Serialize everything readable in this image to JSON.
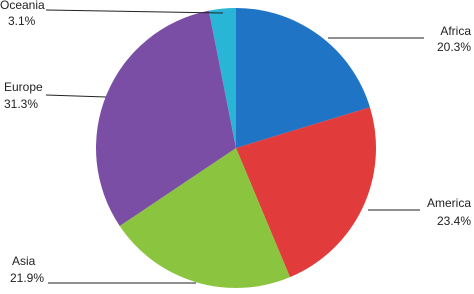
{
  "chart_data": {
    "type": "pie",
    "categories": [
      "Africa",
      "America",
      "Asia",
      "Europe",
      "Oceania"
    ],
    "values": [
      20.3,
      23.4,
      21.9,
      31.3,
      3.1
    ],
    "value_labels": [
      "20.3%",
      "23.4%",
      "21.9%",
      "31.3%",
      "3.1%"
    ],
    "colors": [
      "#1f74c6",
      "#e23b3b",
      "#8bc53f",
      "#7b4ea6",
      "#29b6d6"
    ]
  }
}
